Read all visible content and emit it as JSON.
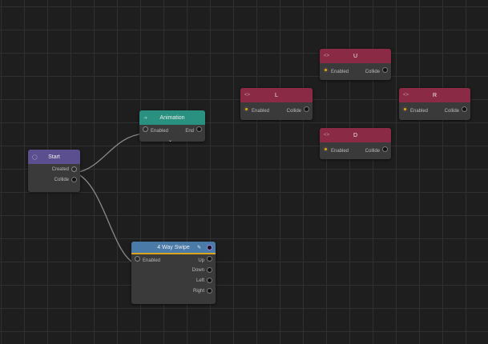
{
  "nodes": {
    "start": {
      "title": "Start",
      "outputs": [
        "Created",
        "Collide"
      ],
      "color": "#5b4f8f"
    },
    "animation": {
      "title": "Animation",
      "input": "Enabled",
      "output": "End",
      "color": "#2a9080"
    },
    "swipe": {
      "title": "4 Way Swipe",
      "input": "Enabled",
      "outputs": [
        "Up",
        "Down",
        "Left",
        "Right"
      ],
      "color": "#4a7aa8",
      "accent": "#d9a520"
    },
    "u": {
      "title": "U",
      "input": "Enabled",
      "output": "Collide"
    },
    "l": {
      "title": "L",
      "input": "Enabled",
      "output": "Collide"
    },
    "r": {
      "title": "R",
      "input": "Enabled",
      "output": "Collide"
    },
    "d": {
      "title": "D",
      "input": "Enabled",
      "output": "Collide"
    }
  },
  "colors": {
    "direction_node": "#8a2a45",
    "background": "#1e1e1e"
  }
}
